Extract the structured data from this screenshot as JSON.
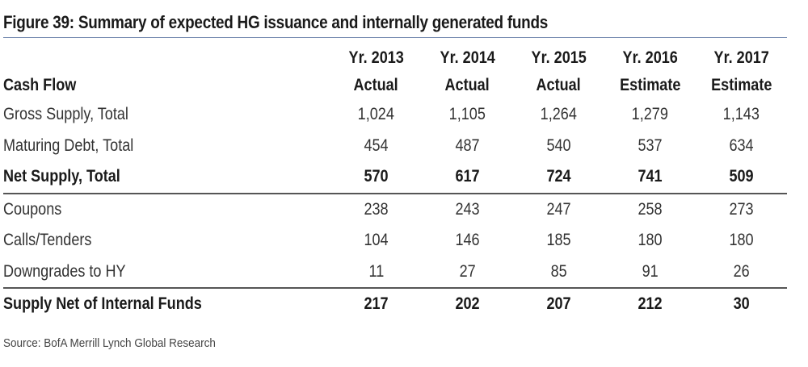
{
  "figure": {
    "title": "Figure 39: Summary of expected HG issuance and internally generated funds",
    "source": "Source: BofA Merrill Lynch Global Research"
  },
  "table": {
    "header_label": "Cash Flow",
    "columns": [
      {
        "year": "Yr. 2013",
        "kind": "Actual"
      },
      {
        "year": "Yr. 2014",
        "kind": "Actual"
      },
      {
        "year": "Yr. 2015",
        "kind": "Actual"
      },
      {
        "year": "Yr. 2016",
        "kind": "Estimate"
      },
      {
        "year": "Yr. 2017",
        "kind": "Estimate"
      }
    ],
    "rows": [
      {
        "label": "Gross Supply, Total",
        "values": [
          "1,024",
          "1,105",
          "1,264",
          "1,279",
          "1,143"
        ]
      },
      {
        "label": "Maturing Debt, Total",
        "values": [
          "454",
          "487",
          "540",
          "537",
          "634"
        ]
      },
      {
        "label": "Net Supply, Total",
        "values": [
          "570",
          "617",
          "724",
          "741",
          "509"
        ]
      },
      {
        "label": "Coupons",
        "values": [
          "238",
          "243",
          "247",
          "258",
          "273"
        ]
      },
      {
        "label": "Calls/Tenders",
        "values": [
          "104",
          "146",
          "185",
          "180",
          "180"
        ]
      },
      {
        "label": "Downgrades to HY",
        "values": [
          "11",
          "27",
          "85",
          "91",
          "26"
        ]
      },
      {
        "label": "Supply Net of Internal Funds",
        "values": [
          "217",
          "202",
          "207",
          "212",
          "30"
        ]
      }
    ]
  }
}
